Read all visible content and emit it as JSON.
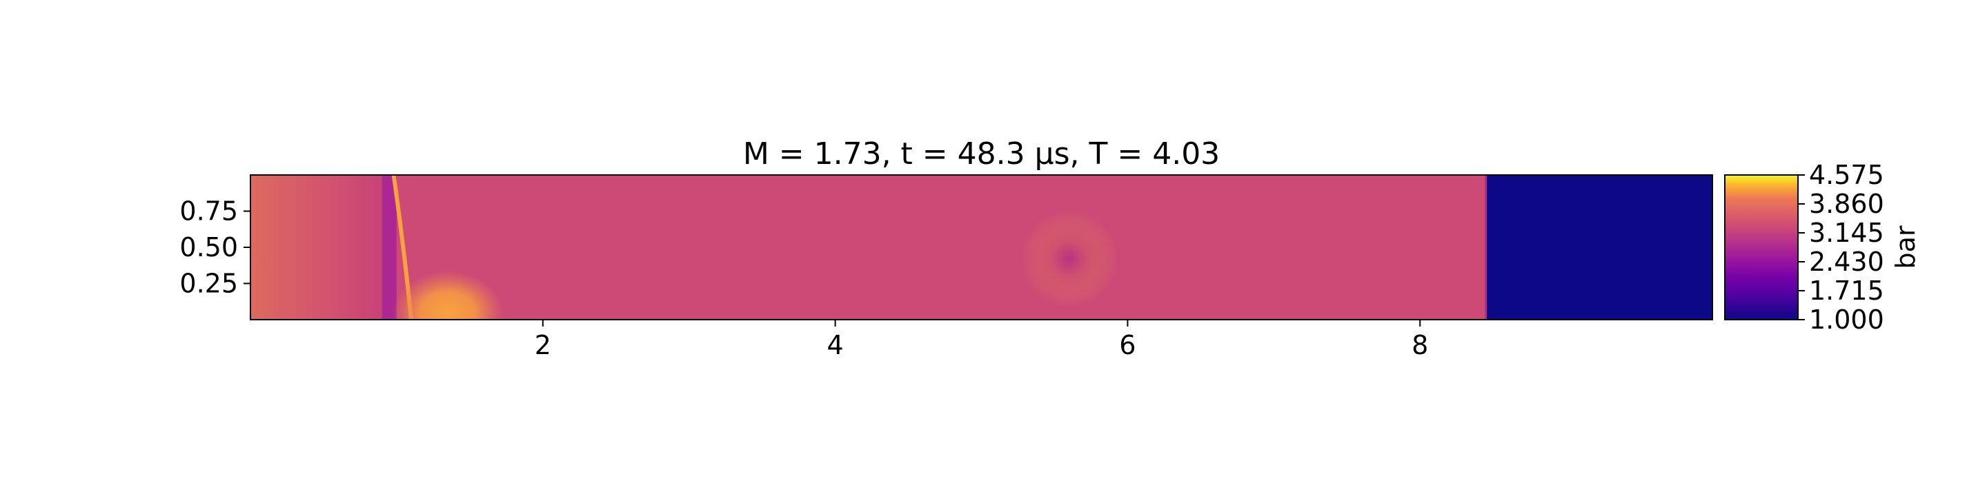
{
  "chart_data": {
    "type": "heatmap",
    "title": "M = 1.73, t = 48.3 μs, T = 4.03",
    "xlabel": "",
    "ylabel": "",
    "xlim": [
      0,
      10
    ],
    "ylim": [
      0,
      1
    ],
    "x_ticks": [
      2,
      4,
      6,
      8
    ],
    "x_tick_labels": [
      "2",
      "4",
      "6",
      "8"
    ],
    "y_ticks": [
      0.25,
      0.5,
      0.75
    ],
    "y_tick_labels": [
      "0.25",
      "0.50",
      "0.75"
    ],
    "colormap": "plasma",
    "colorbar": {
      "label": "bar",
      "range": [
        1.0,
        4.575
      ],
      "ticks": [
        1.0,
        1.715,
        2.43,
        3.145,
        3.86,
        4.575
      ],
      "tick_labels": [
        "1.000",
        "1.715",
        "2.430",
        "3.145",
        "3.860",
        "4.575"
      ]
    },
    "field": {
      "background_value": 3.3,
      "regions": [
        {
          "x_from": 0.0,
          "x_to": 0.9,
          "value": 3.0
        },
        {
          "x_from": 0.9,
          "x_to": 1.0,
          "value": 2.75
        },
        {
          "x_from": 1.0,
          "x_to": 8.45,
          "value": 3.3
        },
        {
          "x_from": 8.45,
          "x_to": 10.0,
          "value": 1.0
        }
      ],
      "features": [
        {
          "kind": "low_pressure_spot",
          "x": 5.6,
          "y": 0.42,
          "value": 2.7
        },
        {
          "kind": "high_pressure_corner",
          "x": 1.35,
          "y": 0.05,
          "value": 3.85
        }
      ]
    }
  }
}
